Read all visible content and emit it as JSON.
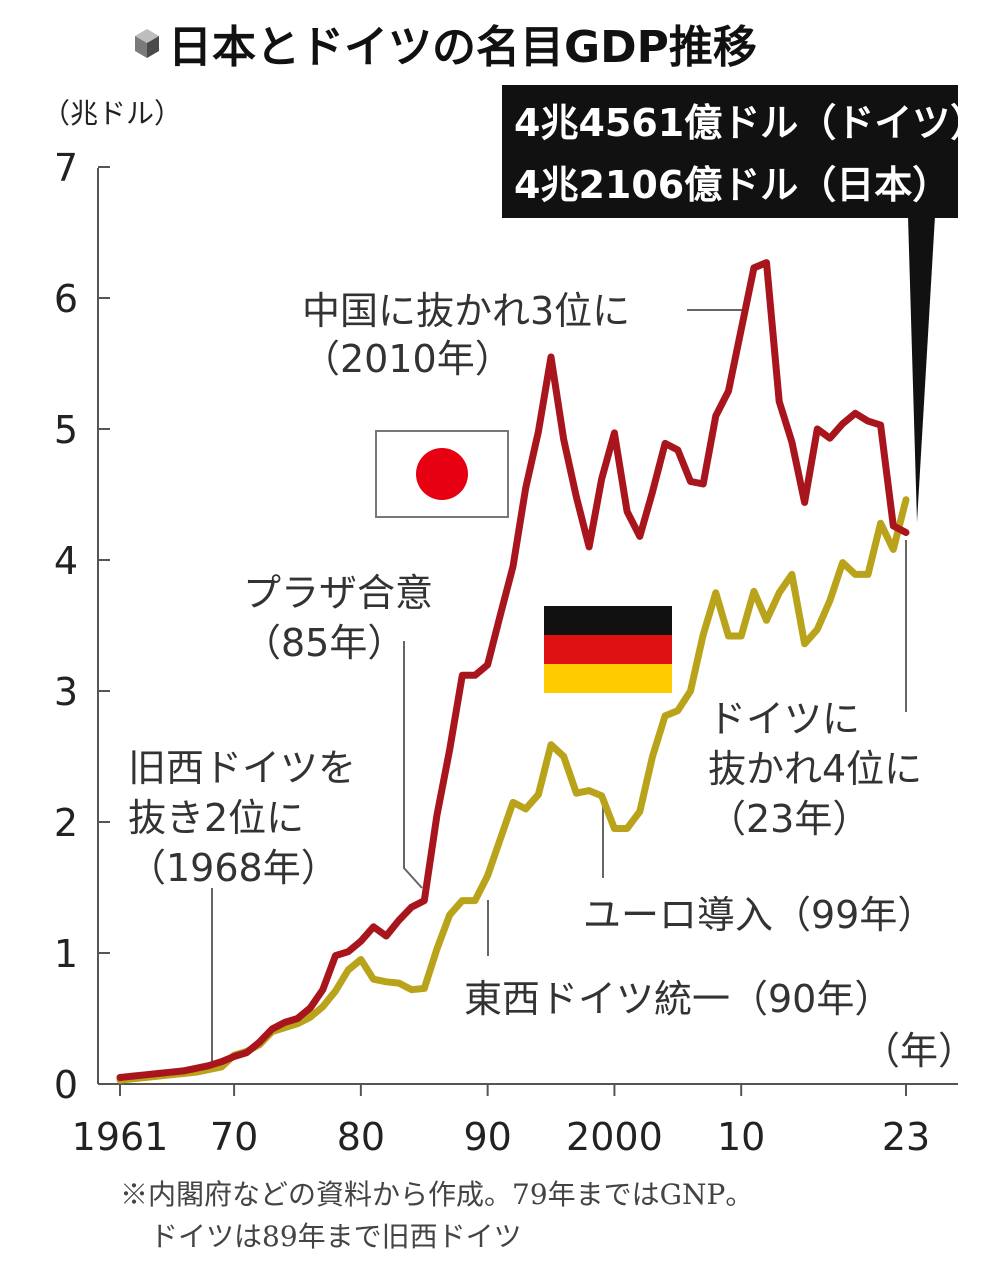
{
  "title": "日本とドイツの名目GDP推移",
  "icon": "cube-icon",
  "unit_label": "（兆ドル）",
  "year_label": "（年）",
  "callout": {
    "line1": "4兆4561億ドル（ドイツ）",
    "line2": "4兆2106億ドル（日本）"
  },
  "annotations": {
    "a1968_l1": "旧西ドイツを",
    "a1968_l2": "抜き2位に",
    "a1968_l3": "（1968年）",
    "plaza_l1": "プラザ合意",
    "plaza_l2": "（85年）",
    "unif": "東西ドイツ統一（90年）",
    "euro": "ユーロ導入（99年）",
    "china_l1": "中国に抜かれ3位に",
    "china_l2": "（2010年）",
    "de_l1": "ドイツに",
    "de_l2": "抜かれ4位に",
    "de_l3": "（23年）"
  },
  "note_line1": "※内閣府などの資料から作成。79年まではGNP。",
  "note_line2": "ドイツは89年まで旧西ドイツ",
  "colors": {
    "japan": "#a8151c",
    "germany": "#b9a31a",
    "flag_red": "#e60012"
  },
  "chart_data": {
    "type": "line",
    "title": "日本とドイツの名目GDP推移",
    "ylabel": "兆ドル",
    "xlabel": "年",
    "ylim": [
      0,
      7
    ],
    "yticks": [
      0,
      1,
      2,
      3,
      4,
      5,
      6,
      7
    ],
    "xtick_labels": [
      {
        "year": 1961,
        "label": "1961"
      },
      {
        "year": 1970,
        "label": "70"
      },
      {
        "year": 1980,
        "label": "80"
      },
      {
        "year": 1990,
        "label": "90"
      },
      {
        "year": 2000,
        "label": "2000"
      },
      {
        "year": 2010,
        "label": "10"
      },
      {
        "year": 2023,
        "label": "23"
      }
    ],
    "x": [
      1961,
      1962,
      1963,
      1964,
      1965,
      1966,
      1967,
      1968,
      1969,
      1970,
      1971,
      1972,
      1973,
      1974,
      1975,
      1976,
      1977,
      1978,
      1979,
      1980,
      1981,
      1982,
      1983,
      1984,
      1985,
      1986,
      1987,
      1988,
      1989,
      1990,
      1991,
      1992,
      1993,
      1994,
      1995,
      1996,
      1997,
      1998,
      1999,
      2000,
      2001,
      2002,
      2003,
      2004,
      2005,
      2006,
      2007,
      2008,
      2009,
      2010,
      2011,
      2012,
      2013,
      2014,
      2015,
      2016,
      2017,
      2018,
      2019,
      2020,
      2021,
      2022,
      2023
    ],
    "series": [
      {
        "name": "日本",
        "flag": "japan",
        "values": [
          0.05,
          0.06,
          0.07,
          0.08,
          0.09,
          0.1,
          0.12,
          0.14,
          0.17,
          0.21,
          0.24,
          0.32,
          0.42,
          0.47,
          0.5,
          0.58,
          0.72,
          0.98,
          1.01,
          1.09,
          1.2,
          1.13,
          1.25,
          1.35,
          1.4,
          2.05,
          2.55,
          3.12,
          3.12,
          3.2,
          3.58,
          3.95,
          4.55,
          4.98,
          5.55,
          4.92,
          4.48,
          4.1,
          4.62,
          4.97,
          4.37,
          4.18,
          4.52,
          4.89,
          4.84,
          4.6,
          4.58,
          5.1,
          5.29,
          5.76,
          6.23,
          6.27,
          5.21,
          4.9,
          4.44,
          5.0,
          4.93,
          5.04,
          5.12,
          5.06,
          5.03,
          4.26,
          4.21
        ]
      },
      {
        "name": "ドイツ",
        "flag": "germany",
        "values": [
          0.03,
          0.04,
          0.05,
          0.06,
          0.07,
          0.08,
          0.09,
          0.11,
          0.13,
          0.22,
          0.25,
          0.3,
          0.4,
          0.43,
          0.46,
          0.51,
          0.59,
          0.71,
          0.87,
          0.95,
          0.8,
          0.78,
          0.77,
          0.72,
          0.73,
          1.03,
          1.29,
          1.4,
          1.4,
          1.59,
          1.87,
          2.15,
          2.1,
          2.21,
          2.59,
          2.5,
          2.22,
          2.24,
          2.2,
          1.95,
          1.95,
          2.08,
          2.5,
          2.81,
          2.85,
          3.0,
          3.43,
          3.75,
          3.42,
          3.42,
          3.76,
          3.54,
          3.75,
          3.89,
          3.36,
          3.47,
          3.69,
          3.98,
          3.89,
          3.89,
          4.28,
          4.08,
          4.46
        ]
      }
    ]
  }
}
